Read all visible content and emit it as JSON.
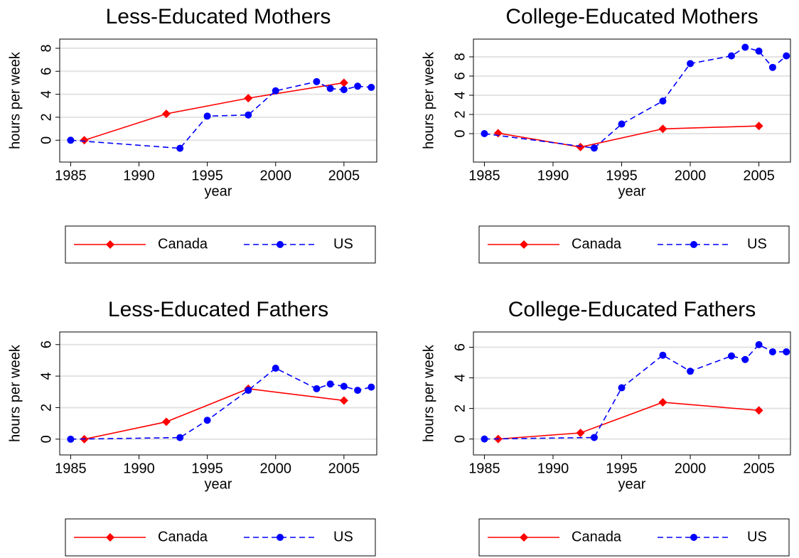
{
  "chart_data": [
    {
      "type": "line",
      "title": "Less-Educated Mothers",
      "xlabel": "year",
      "ylabel": "hours per week",
      "xlim": [
        1984.2,
        2007.4
      ],
      "xticks": [
        1985,
        1990,
        1995,
        2000,
        2005
      ],
      "ylim": [
        -1.9,
        8.8
      ],
      "yticks": [
        0,
        2,
        4,
        6,
        8
      ],
      "grid": true,
      "series": [
        {
          "name": "Canada",
          "color": "#ff0000",
          "marker": "diamond",
          "linestyle": "solid",
          "x": [
            1986,
            1992,
            1998,
            2005
          ],
          "values": [
            0,
            2.3,
            3.66,
            5.0
          ]
        },
        {
          "name": "US",
          "color": "#0000ff",
          "marker": "circle",
          "linestyle": "dashed",
          "x": [
            1985,
            1993,
            1995,
            1998,
            2000,
            2003,
            2004,
            2005,
            2006,
            2007
          ],
          "values": [
            0,
            -0.7,
            2.1,
            2.2,
            4.3,
            5.1,
            4.5,
            4.4,
            4.7,
            4.6
          ]
        }
      ]
    },
    {
      "type": "line",
      "title": "College-Educated Mothers",
      "xlabel": "year",
      "ylabel": "hours per week",
      "xlim": [
        1984.2,
        2007.3
      ],
      "xticks": [
        1985,
        1990,
        1995,
        2000,
        2005
      ],
      "ylim": [
        -2.96,
        9.85
      ],
      "yticks": [
        0,
        2,
        4,
        6,
        8
      ],
      "grid": true,
      "series": [
        {
          "name": "Canada",
          "color": "#ff0000",
          "marker": "diamond",
          "linestyle": "solid",
          "x": [
            1986,
            1992,
            1998,
            2005
          ],
          "values": [
            0.05,
            -1.4,
            0.5,
            0.8
          ]
        },
        {
          "name": "US",
          "color": "#0000ff",
          "marker": "circle",
          "linestyle": "dashed",
          "x": [
            1985,
            1993,
            1995,
            1998,
            2000,
            2003,
            2004,
            2005,
            2006,
            2007
          ],
          "values": [
            0,
            -1.5,
            1.0,
            3.4,
            7.3,
            8.1,
            9.0,
            8.6,
            6.9,
            8.1
          ]
        }
      ]
    },
    {
      "type": "line",
      "title": "Less-Educated Fathers",
      "xlabel": "year",
      "ylabel": "hours per week",
      "xlim": [
        1984.2,
        2007.4
      ],
      "xticks": [
        1985,
        1990,
        1995,
        2000,
        2005
      ],
      "ylim": [
        -1.0,
        6.8
      ],
      "yticks": [
        0,
        2,
        4,
        6
      ],
      "grid": true,
      "series": [
        {
          "name": "Canada",
          "color": "#ff0000",
          "marker": "diamond",
          "linestyle": "solid",
          "x": [
            1986,
            1992,
            1998,
            2005
          ],
          "values": [
            0,
            1.1,
            3.2,
            2.45
          ]
        },
        {
          "name": "US",
          "color": "#0000ff",
          "marker": "circle",
          "linestyle": "dashed",
          "x": [
            1985,
            1993,
            1995,
            1998,
            2000,
            2003,
            2004,
            2005,
            2006,
            2007
          ],
          "values": [
            0,
            0.1,
            1.2,
            3.1,
            4.5,
            3.2,
            3.5,
            3.35,
            3.1,
            3.3
          ]
        }
      ]
    },
    {
      "type": "line",
      "title": "College-Educated Fathers",
      "xlabel": "year",
      "ylabel": "hours per week",
      "xlim": [
        1984.2,
        2007.3
      ],
      "xticks": [
        1985,
        1990,
        1995,
        2000,
        2005
      ],
      "ylim": [
        -1.04,
        7.0
      ],
      "yticks": [
        0,
        2,
        4,
        6
      ],
      "grid": true,
      "series": [
        {
          "name": "Canada",
          "color": "#ff0000",
          "marker": "diamond",
          "linestyle": "solid",
          "x": [
            1986,
            1992,
            1998,
            2005
          ],
          "values": [
            0,
            0.4,
            2.4,
            1.87
          ]
        },
        {
          "name": "US",
          "color": "#0000ff",
          "marker": "circle",
          "linestyle": "dashed",
          "x": [
            1985,
            1993,
            1995,
            1998,
            2000,
            2003,
            2004,
            2005,
            2006,
            2007
          ],
          "values": [
            0,
            0.1,
            3.35,
            5.48,
            4.43,
            5.43,
            5.2,
            6.17,
            5.7,
            5.7
          ]
        }
      ]
    }
  ]
}
